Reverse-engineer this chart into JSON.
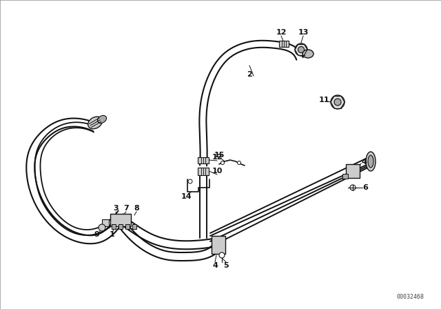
{
  "bg_color": "#f0f0f0",
  "line_color": "#111111",
  "fig_width": 6.4,
  "fig_height": 4.48,
  "dpi": 100,
  "diagram_id": "00032468",
  "white_bg": "#ffffff"
}
